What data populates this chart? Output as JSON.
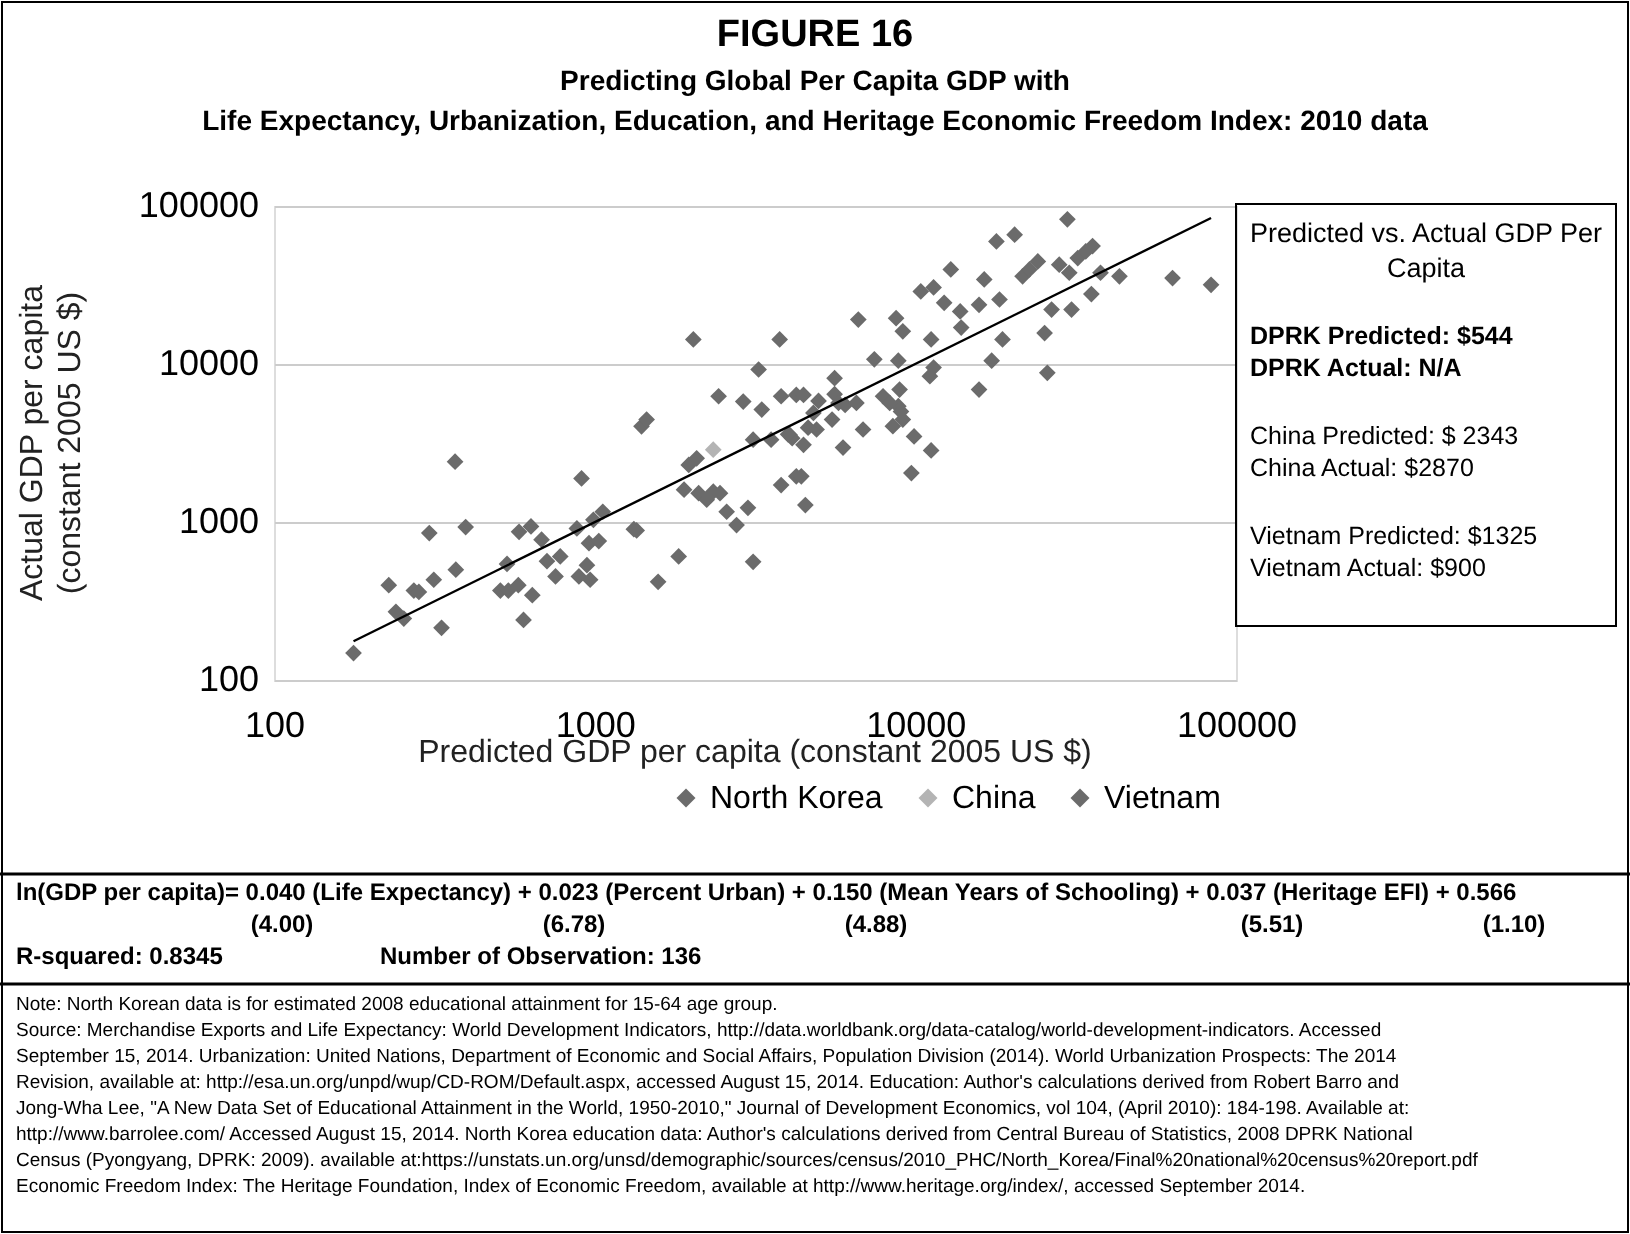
{
  "chart_data": {
    "type": "scatter",
    "title": "FIGURE 16",
    "subtitle": "Predicting Global Per Capita GDP with\nLife Expectancy, Urbanization, Education, and Heritage Economic Freedom Index: 2010 data",
    "xlabel": "Predicted GDP per capita (constant 2005 US $)",
    "ylabel": "Actual GDP per capita\n(constant 2005 US $)",
    "log": "xy",
    "xlim": [
      100,
      100000
    ],
    "ylim": [
      100,
      100000
    ],
    "xticks": [
      100,
      1000,
      10000,
      100000
    ],
    "yticks": [
      100,
      1000,
      10000,
      100000
    ],
    "grid": "y",
    "legend": "bottom",
    "marker": "diamond",
    "series": [
      {
        "color": "#6b6b6b",
        "x": [
          177,
          228,
          240,
          254,
          273,
          283,
          305,
          315,
          333,
          367,
          369,
          396,
          508,
          533,
          538,
          578,
          581,
          600,
          633,
          639,
          683,
          710,
          755,
          781,
          880,
          893,
          910,
          946,
          968,
          960,
          991,
          1030,
          1060,
          1352,
          1400,
          1452,
          1577,
          1828,
          1900,
          1965,
          2031,
          2080,
          2110,
          2236,
          2344,
          2435,
          2460,
          2580,
          2770,
          2906,
          3006,
          3120,
          3245,
          3320,
          3120,
          3550,
          3775,
          3815,
          3815,
          4057,
          4254,
          4254,
          29800,
          17900,
          20400,
          12900,
          10400,
          11400,
          12300,
          13800,
          15800,
          16400,
          18300,
          21600,
          22700,
          24100,
          28100,
          30200,
          32100,
          34000,
          35700,
          37800,
          43300,
          63400,
          83600,
          35400,
          30700,
          26600,
          25300,
          25800,
          18700,
          17300,
          15800,
          13900,
          11200,
          11400,
          11100,
          11200,
          9720,
          9910,
          9140,
          8850,
          9140,
          8710,
          8850,
          9020,
          8930,
          8510,
          7930,
          8320,
          7450,
          6640,
          6870,
          5950,
          5600,
          5600,
          5760,
          6040,
          5500,
          6550,
          4990,
          4920,
          4810,
          4480,
          4630,
          4480,
          4130,
          4010,
          4410,
          4540
        ],
        "values": [
          148,
          398,
          270,
          245,
          368,
          361,
          851,
          431,
          214,
          2410,
          499,
          929,
          368,
          543,
          368,
          398,
          867,
          240,
          938,
          344,
          773,
          565,
          452,
          605,
          910,
          452,
          1888,
          533,
          431,
          735,
          1033,
          757,
          1161,
          885,
          4036,
          4450,
          418,
          605,
          1602,
          2296,
          14300,
          2530,
          1523,
          1383,
          1555,
          6250,
          1523,
          1161,
          957,
          5780,
          1230,
          560,
          9230,
          5150,
          3320,
          3320,
          14300,
          6250,
          1714,
          3555,
          6370,
          1945,
          82300,
          59700,
          65800,
          39700,
          28800,
          30500,
          24400,
          21500,
          23700,
          34300,
          25600,
          35900,
          39700,
          44600,
          42500,
          37800,
          46800,
          51600,
          55800,
          37800,
          35900,
          35000,
          31700,
          27700,
          22100,
          22100,
          15700,
          8790,
          14300,
          10500,
          6890,
          17000,
          14300,
          9500,
          8380,
          2840,
          2040,
          3480,
          4450,
          10500,
          16100,
          19500,
          5410,
          5000,
          6890,
          4040,
          6250,
          5670,
          10700,
          19100,
          3850,
          2960,
          8130,
          6440,
          5670,
          5510,
          4450,
          5670,
          5840,
          3850,
          4900,
          6370,
          3950,
          3080,
          3390,
          3590,
          1945,
          1280
        ]
      },
      {
        "name": "North Korea",
        "color": "#6b6b6b"
      },
      {
        "name": "China",
        "color": "#b4b4b4",
        "x": [
          2343
        ],
        "values": [
          2870
        ]
      },
      {
        "name": "Vietnam",
        "color": "#6b6b6b",
        "x": [
          1325
        ],
        "values": [
          900
        ]
      },
      {
        "type": "line",
        "marker": "none",
        "line_style": "solid",
        "color": "#000000",
        "x": [
          177,
          83600
        ],
        "values": [
          176,
          84000
        ]
      }
    ],
    "annotations": [
      "Predicted vs. Actual GDP Per Capita",
      "DPRK Predicted: $544",
      "DPRK Actual:  N/A",
      "China Predicted: $ 2343",
      "China Actual: $2870",
      "Vietnam Predicted: $1325",
      "Vietnam Actual: $900",
      "ln(GDP per capita)= 0.040 (Life Expectancy) + 0.023 (Percent Urban) + 0.150 (Mean Years of Schooling) +  0.037 (Heritage EFI) + 0.566",
      "(4.00)",
      "(6.78)",
      "(4.88)",
      "(5.51)",
      "(1.10)",
      "R-squared: 0.8345",
      "Number of Observation: 136",
      "Note: North Korean data is for estimated 2008 educational attainment for 15-64 age group.",
      "Source: Merchandise Exports and Life Expectancy: World Development Indicators, http://data.worldbank.org/data-catalog/world-development-indicators. Accessed September 15, 2014. Urbanization: United Nations, Department of Economic and Social Affairs, Population Division (2014). World Urbanization Prospects: The 2014 Revision, available at: http://esa.un.org/unpd/wup/CD-ROM/Default.aspx, accessed August 15, 2014. Education: Author's calculations derived from Robert Barro and Jong-Wha Lee, \"A New Data Set of Educational Attainment in the World, 1950-2010,\" Journal of Development Economics, vol 104, (April 2010): 184-198. Available at: http://www.barrolee.com/ Accessed August 15, 2014. North Korea  education data: Author's calculations derived from Central Bureau of Statistics, 2008 DPRK National Census (Pyongyang, DPRK: 2009). available at:https://unstats.un.org/unsd/demographic/sources/census/2010_PHC/North_Korea/Final%20national%20census%20report.pdf",
      "Economic Freedom Index: The Heritage Foundation, Index of Economic Freedom, available at http://www.heritage.org/index/, accessed September 2014."
    ]
  }
}
